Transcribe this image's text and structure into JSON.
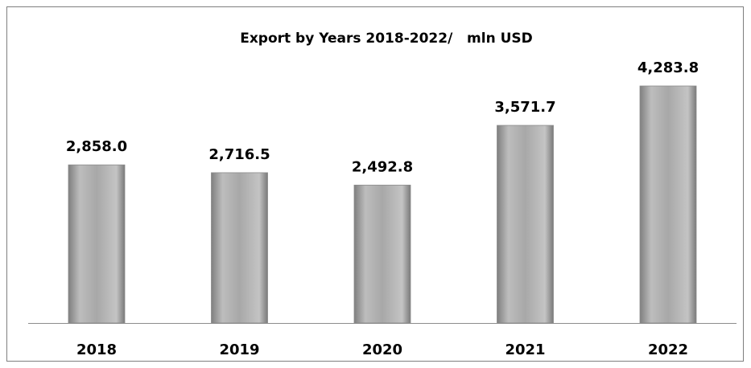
{
  "chart_data": {
    "type": "bar",
    "title": "Export by Years 2018-2022/   mln USD",
    "categories": [
      "2018",
      "2019",
      "2020",
      "2021",
      "2022"
    ],
    "values": [
      2858.0,
      2716.5,
      2492.8,
      3571.7,
      4283.8
    ],
    "value_labels": [
      "2,858.0",
      "2,716.5",
      "2,492.8",
      "3,571.7",
      "4,283.8"
    ],
    "color": "#a6a6a6"
  }
}
